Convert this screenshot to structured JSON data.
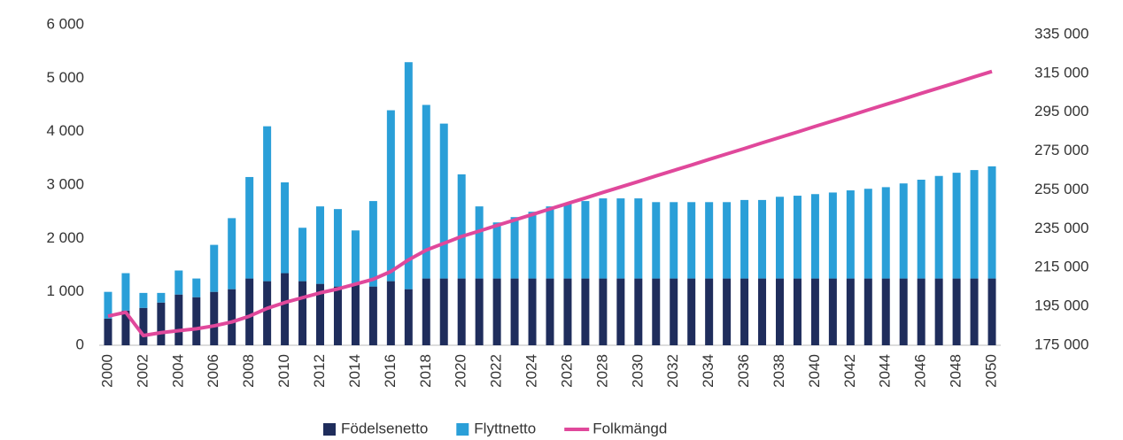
{
  "chart_data": {
    "type": "bar",
    "categories": [
      "2000",
      null,
      "2002",
      null,
      "2004",
      null,
      "2006",
      null,
      "2008",
      null,
      "2010",
      null,
      "2012",
      null,
      "2014",
      null,
      "2016",
      null,
      "2018",
      null,
      "2020",
      null,
      "2022",
      null,
      "2024",
      null,
      "2026",
      null,
      "2028",
      null,
      "2030",
      null,
      "2032",
      null,
      "2034",
      null,
      "2036",
      null,
      "2038",
      null,
      "2040",
      null,
      "2042",
      null,
      "2044",
      null,
      "2046",
      null,
      "2048",
      null,
      "2050"
    ],
    "series": [
      {
        "name": "Födelsenetto",
        "color": "#1f2d5c",
        "type": "bar",
        "stack": true,
        "values": [
          500,
          650,
          700,
          800,
          950,
          900,
          1000,
          1050,
          1250,
          1200,
          1350,
          1200,
          1150,
          1100,
          1150,
          1100,
          1200,
          1050,
          1250,
          1250,
          1250,
          1250,
          1250,
          1250,
          1250,
          1250,
          1250,
          1250,
          1250,
          1250,
          1250,
          1250,
          1250,
          1250,
          1250,
          1250,
          1250,
          1250,
          1250,
          1250,
          1250,
          1250,
          1250,
          1250,
          1250,
          1250,
          1250,
          1250,
          1250,
          1250,
          1250
        ]
      },
      {
        "name": "Flyttnetto",
        "color": "#2a9fd8",
        "type": "bar",
        "stack": true,
        "values": [
          500,
          700,
          280,
          180,
          450,
          350,
          880,
          1330,
          1900,
          2900,
          1700,
          1000,
          1450,
          1450,
          1000,
          1600,
          3200,
          4250,
          3250,
          2900,
          1950,
          1350,
          1050,
          1150,
          1250,
          1350,
          1400,
          1450,
          1500,
          1500,
          1500,
          1430,
          1430,
          1430,
          1430,
          1430,
          1470,
          1470,
          1530,
          1550,
          1580,
          1610,
          1650,
          1680,
          1710,
          1780,
          1850,
          1920,
          1980,
          2030,
          2100
        ]
      },
      {
        "name": "Folkmängd",
        "color": "#e0489b",
        "type": "line",
        "axis": "y2",
        "values": [
          190000,
          192000,
          180000,
          181500,
          182500,
          183500,
          185000,
          187000,
          190000,
          194000,
          197000,
          199500,
          202000,
          204000,
          206500,
          209000,
          213000,
          219000,
          224000,
          227500,
          231000,
          233800,
          236700,
          239500,
          242300,
          245200,
          248000,
          250800,
          253700,
          256500,
          259300,
          262200,
          265000,
          267800,
          270700,
          273500,
          276300,
          279200,
          282000,
          284800,
          287700,
          290500,
          293300,
          296200,
          299000,
          301800,
          304700,
          307500,
          310300,
          313200,
          316000
        ]
      }
    ],
    "ylim": [
      0,
      6000
    ],
    "yticks": [
      0,
      {
        "value": 1000,
        "label": "1 000"
      },
      {
        "value": 2000,
        "label": "2 000"
      },
      {
        "value": 3000,
        "label": "3 000"
      },
      {
        "value": 4000,
        "label": "4 000"
      },
      {
        "value": 5000,
        "label": "5 000"
      },
      {
        "value": 6000,
        "label": "6 000"
      }
    ],
    "y2lim": [
      175000,
      340000
    ],
    "y2ticks": [
      {
        "value": 175000,
        "label": "175 000"
      },
      {
        "value": 195000,
        "label": "195 000"
      },
      {
        "value": 215000,
        "label": "215 000"
      },
      {
        "value": 235000,
        "label": "235 000"
      },
      {
        "value": 255000,
        "label": "255 000"
      },
      {
        "value": 275000,
        "label": "275 000"
      },
      {
        "value": 295000,
        "label": "295 000"
      },
      {
        "value": 315000,
        "label": "315 000"
      },
      {
        "value": 335000,
        "label": "335 000"
      }
    ],
    "grid": false,
    "legend": "bottom"
  }
}
